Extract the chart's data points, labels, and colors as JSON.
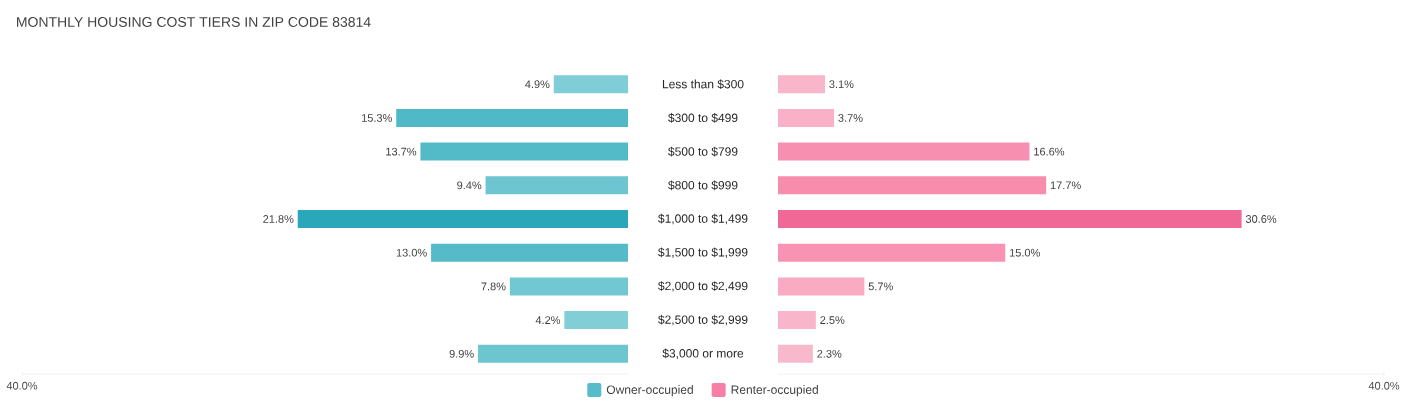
{
  "chart_data": [
    {
      "type": "bar",
      "orientation": "horizontal",
      "title": "MONTHLY HOUSING COST TIERS IN ZIP CODE 83814",
      "categories": [
        "Less than $300",
        "$300 to $499",
        "$500 to $799",
        "$800 to $999",
        "$1,000 to $1,499",
        "$1,500 to $1,999",
        "$2,000 to $2,499",
        "$2,500 to $2,999",
        "$3,000 or more"
      ],
      "series": [
        {
          "name": "Owner-occupied",
          "color": "#56bcc9",
          "colors": [
            "#7fcdd6",
            "#4fb9c7",
            "#53bbc8",
            "#6cc5d0",
            "#2aa8b9",
            "#55bbc8",
            "#72c8d2",
            "#82ced7",
            "#6dc5d0"
          ],
          "values": [
            4.9,
            15.3,
            13.7,
            9.4,
            21.8,
            13.0,
            7.8,
            4.2,
            9.9
          ],
          "value_labels": [
            "4.9%",
            "15.3%",
            "13.7%",
            "9.4%",
            "21.8%",
            "13.0%",
            "7.8%",
            "4.2%",
            "9.9%"
          ]
        }
      ],
      "xlim": [
        40,
        0
      ],
      "xticks": [
        {
          "value": 40,
          "label": "40.0%"
        }
      ],
      "legend": "bottom"
    },
    {
      "type": "bar",
      "orientation": "horizontal",
      "categories": [
        null,
        null,
        null,
        null,
        null,
        null,
        null,
        null,
        null
      ],
      "series": [
        {
          "name": "Renter-occupied",
          "color": "#f77fa5",
          "colors": [
            "#f9b5ca",
            "#f9b1c7",
            "#f78fb0",
            "#f78cad",
            "#f06895",
            "#f893b3",
            "#f9abc3",
            "#f9b6cb",
            "#f9b9cd"
          ],
          "values": [
            3.1,
            3.7,
            16.6,
            17.7,
            30.6,
            15.0,
            5.7,
            2.5,
            2.3
          ],
          "value_labels": [
            "3.1%",
            "3.7%",
            "16.6%",
            "17.7%",
            "30.6%",
            "15.0%",
            "5.7%",
            "2.5%",
            "2.3%"
          ]
        }
      ],
      "xlim": [
        0,
        40
      ],
      "xticks": [
        {
          "value": 40,
          "label": "40.0%"
        }
      ],
      "tick_labels": "x",
      "legend": "bottom"
    }
  ]
}
